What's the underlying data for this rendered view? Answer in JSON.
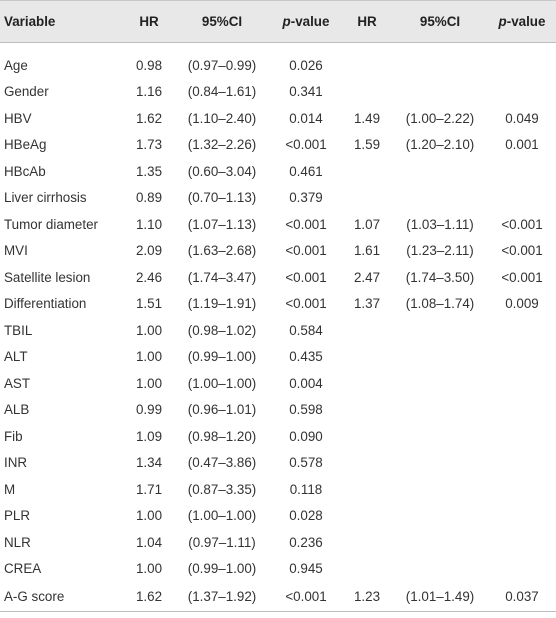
{
  "headers": {
    "variable": "Variable",
    "hr1": "HR",
    "ci1": "95%CI",
    "p_italic": "p",
    "p_suffix": "-value",
    "hr2": "HR",
    "ci2": "95%CI"
  },
  "rows": [
    {
      "variable": "Age",
      "hr1": "0.98",
      "ci1": "(0.97–0.99)",
      "p1": "0.026",
      "hr2": "",
      "ci2": "",
      "p2": ""
    },
    {
      "variable": "Gender",
      "hr1": "1.16",
      "ci1": "(0.84–1.61)",
      "p1": "0.341",
      "hr2": "",
      "ci2": "",
      "p2": ""
    },
    {
      "variable": "HBV",
      "hr1": "1.62",
      "ci1": "(1.10–2.40)",
      "p1": "0.014",
      "hr2": "1.49",
      "ci2": "(1.00–2.22)",
      "p2": "0.049"
    },
    {
      "variable": "HBeAg",
      "hr1": "1.73",
      "ci1": "(1.32–2.26)",
      "p1": "<0.001",
      "hr2": "1.59",
      "ci2": "(1.20–2.10)",
      "p2": "0.001"
    },
    {
      "variable": "HBcAb",
      "hr1": "1.35",
      "ci1": "(0.60–3.04)",
      "p1": "0.461",
      "hr2": "",
      "ci2": "",
      "p2": ""
    },
    {
      "variable": "Liver cirrhosis",
      "hr1": "0.89",
      "ci1": "(0.70–1.13)",
      "p1": "0.379",
      "hr2": "",
      "ci2": "",
      "p2": ""
    },
    {
      "variable": "Tumor diameter",
      "hr1": "1.10",
      "ci1": "(1.07–1.13)",
      "p1": "<0.001",
      "hr2": "1.07",
      "ci2": "(1.03–1.11)",
      "p2": "<0.001"
    },
    {
      "variable": "MVI",
      "hr1": "2.09",
      "ci1": "(1.63–2.68)",
      "p1": "<0.001",
      "hr2": "1.61",
      "ci2": "(1.23–2.11)",
      "p2": "<0.001"
    },
    {
      "variable": "Satellite lesion",
      "hr1": "2.46",
      "ci1": "(1.74–3.47)",
      "p1": "<0.001",
      "hr2": "2.47",
      "ci2": "(1.74–3.50)",
      "p2": "<0.001"
    },
    {
      "variable": "Differentiation",
      "hr1": "1.51",
      "ci1": "(1.19–1.91)",
      "p1": "<0.001",
      "hr2": "1.37",
      "ci2": "(1.08–1.74)",
      "p2": "0.009"
    },
    {
      "variable": "TBIL",
      "hr1": "1.00",
      "ci1": "(0.98–1.02)",
      "p1": "0.584",
      "hr2": "",
      "ci2": "",
      "p2": ""
    },
    {
      "variable": "ALT",
      "hr1": "1.00",
      "ci1": "(0.99–1.00)",
      "p1": "0.435",
      "hr2": "",
      "ci2": "",
      "p2": ""
    },
    {
      "variable": "AST",
      "hr1": "1.00",
      "ci1": "(1.00–1.00)",
      "p1": "0.004",
      "hr2": "",
      "ci2": "",
      "p2": ""
    },
    {
      "variable": "ALB",
      "hr1": "0.99",
      "ci1": "(0.96–1.01)",
      "p1": "0.598",
      "hr2": "",
      "ci2": "",
      "p2": ""
    },
    {
      "variable": "Fib",
      "hr1": "1.09",
      "ci1": "(0.98–1.20)",
      "p1": "0.090",
      "hr2": "",
      "ci2": "",
      "p2": ""
    },
    {
      "variable": "INR",
      "hr1": "1.34",
      "ci1": "(0.47–3.86)",
      "p1": "0.578",
      "hr2": "",
      "ci2": "",
      "p2": ""
    },
    {
      "variable": "M",
      "hr1": "1.71",
      "ci1": "(0.87–3.35)",
      "p1": "0.118",
      "hr2": "",
      "ci2": "",
      "p2": ""
    },
    {
      "variable": "PLR",
      "hr1": "1.00",
      "ci1": "(1.00–1.00)",
      "p1": "0.028",
      "hr2": "",
      "ci2": "",
      "p2": ""
    },
    {
      "variable": "NLR",
      "hr1": "1.04",
      "ci1": "(0.97–1.11)",
      "p1": "0.236",
      "hr2": "",
      "ci2": "",
      "p2": ""
    },
    {
      "variable": "CREA",
      "hr1": "1.00",
      "ci1": "(0.99–1.00)",
      "p1": "0.945",
      "hr2": "",
      "ci2": "",
      "p2": ""
    },
    {
      "variable": "A-G score",
      "hr1": "1.62",
      "ci1": "(1.37–1.92)",
      "p1": "<0.001",
      "hr2": "1.23",
      "ci2": "(1.01–1.49)",
      "p2": "0.037"
    }
  ]
}
